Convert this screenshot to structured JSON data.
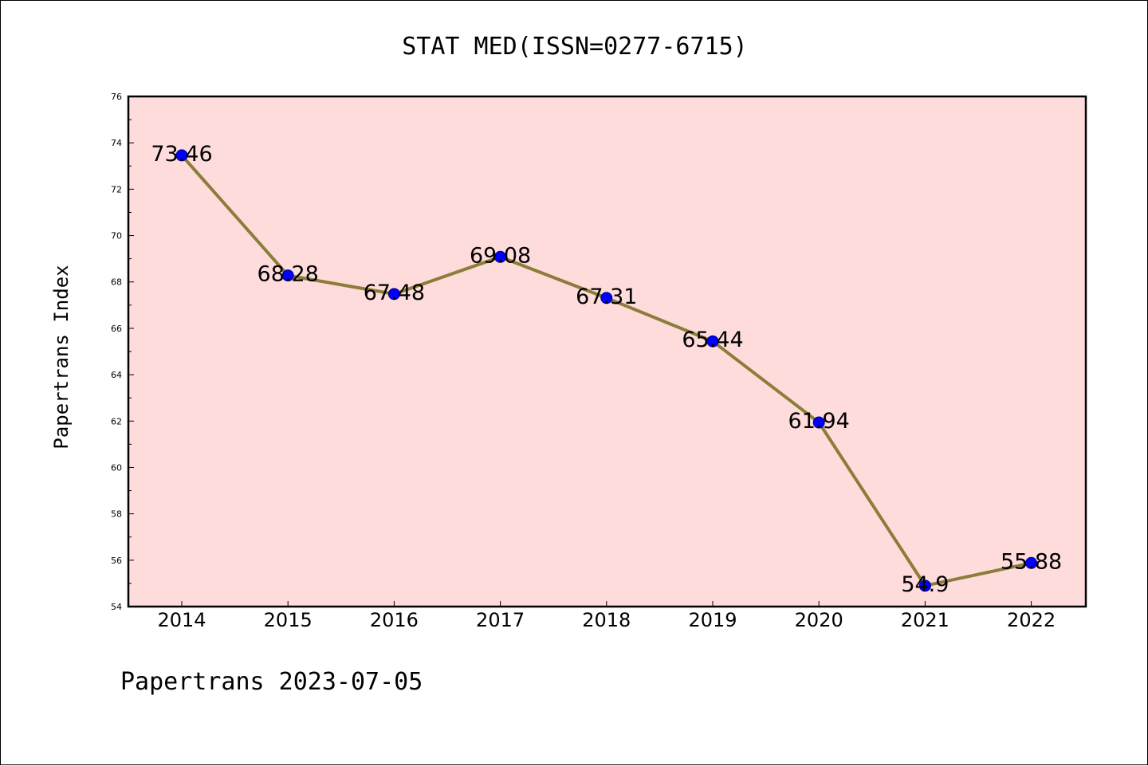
{
  "chart_data": {
    "type": "line",
    "title": "STAT MED(ISSN=0277-6715)",
    "xlabel": "",
    "ylabel": "Papertrans Index",
    "categories": [
      "2014",
      "2015",
      "2016",
      "2017",
      "2018",
      "2019",
      "2020",
      "2021",
      "2022"
    ],
    "series": [
      {
        "values": [
          73.46,
          68.28,
          67.48,
          69.08,
          67.31,
          65.44,
          61.94,
          54.9,
          55.88
        ],
        "labels": [
          "73.46",
          "68.28",
          "67.48",
          "69.08",
          "67.31",
          "65.44",
          "61.94",
          "54.9",
          "55.88"
        ],
        "line_color": "#8b7d3a",
        "marker_color": "#0000ff"
      }
    ],
    "ylim": [
      54,
      76
    ],
    "yticks": [
      "54",
      "56",
      "58",
      "60",
      "62",
      "64",
      "66",
      "68",
      "70",
      "72",
      "74",
      "76"
    ],
    "grid": false,
    "legend": "none",
    "plot_background": "#ffdcdc",
    "footer": "Papertrans 2023-07-05"
  }
}
